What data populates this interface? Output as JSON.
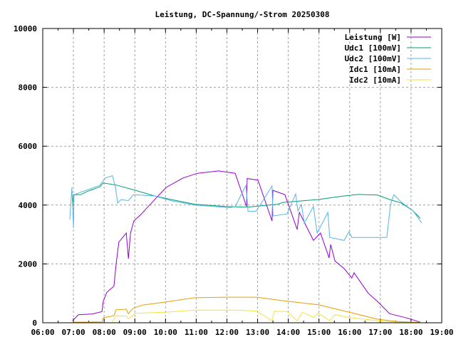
{
  "chart_data": {
    "type": "line",
    "title": "Leistung, DC-Spannung/-Strom 20250308",
    "xlabel": "",
    "ylabel": "",
    "xlim": [
      6,
      19
    ],
    "ylim": [
      0,
      10000
    ],
    "grid": true,
    "legend_position": "top-right",
    "x_tick_labels": [
      "06:00",
      "07:00",
      "08:00",
      "09:00",
      "10:00",
      "11:00",
      "12:00",
      "13:00",
      "14:00",
      "15:00",
      "16:00",
      "17:00",
      "18:00",
      "19:00"
    ],
    "y_tick_labels": [
      "0",
      "2000",
      "4000",
      "6000",
      "8000",
      "10000"
    ],
    "x_unit": "hour of day",
    "series": [
      {
        "name": "Leistung [W]",
        "color": "#9400d3",
        "points": [
          [
            6.97,
            70
          ],
          [
            7.16,
            270
          ],
          [
            7.62,
            300
          ],
          [
            7.93,
            380
          ],
          [
            7.97,
            730
          ],
          [
            8.09,
            1040
          ],
          [
            8.32,
            1240
          ],
          [
            8.39,
            2000
          ],
          [
            8.48,
            2740
          ],
          [
            8.72,
            3050
          ],
          [
            8.79,
            2180
          ],
          [
            8.86,
            3050
          ],
          [
            8.97,
            3460
          ],
          [
            9.02,
            3510
          ],
          [
            9.18,
            3660
          ],
          [
            9.48,
            4000
          ],
          [
            10.02,
            4600
          ],
          [
            10.57,
            4920
          ],
          [
            11.04,
            5080
          ],
          [
            11.73,
            5160
          ],
          [
            12.27,
            5080
          ],
          [
            12.64,
            3950
          ],
          [
            12.66,
            4900
          ],
          [
            13.01,
            4850
          ],
          [
            13.47,
            3460
          ],
          [
            13.5,
            4500
          ],
          [
            13.89,
            4350
          ],
          [
            14.29,
            3170
          ],
          [
            14.36,
            3750
          ],
          [
            14.82,
            2800
          ],
          [
            15.05,
            3050
          ],
          [
            15.33,
            2200
          ],
          [
            15.38,
            2660
          ],
          [
            15.52,
            2100
          ],
          [
            15.82,
            1840
          ],
          [
            16.07,
            1520
          ],
          [
            16.14,
            1700
          ],
          [
            16.61,
            1000
          ],
          [
            16.91,
            720
          ],
          [
            17.3,
            310
          ],
          [
            17.91,
            150
          ],
          [
            18.3,
            20
          ]
        ]
      },
      {
        "name": "Udc1 [100mV]",
        "color": "#009e73",
        "points": [
          [
            6.97,
            3950
          ],
          [
            7.0,
            4350
          ],
          [
            7.23,
            4350
          ],
          [
            7.46,
            4470
          ],
          [
            7.86,
            4620
          ],
          [
            7.97,
            4750
          ],
          [
            8.39,
            4680
          ],
          [
            9.02,
            4500
          ],
          [
            9.64,
            4310
          ],
          [
            10.18,
            4190
          ],
          [
            10.94,
            4030
          ],
          [
            11.97,
            3950
          ],
          [
            12.66,
            3930
          ],
          [
            13.66,
            4030
          ],
          [
            13.82,
            4090
          ],
          [
            14.98,
            4190
          ],
          [
            15.75,
            4300
          ],
          [
            16.28,
            4360
          ],
          [
            16.91,
            4340
          ],
          [
            17.3,
            4190
          ],
          [
            17.68,
            4070
          ],
          [
            18.07,
            3800
          ],
          [
            18.3,
            3550
          ]
        ]
      },
      {
        "name": "Udc2 [100mV]",
        "color": "#56b4e9",
        "points": [
          [
            6.88,
            3510
          ],
          [
            6.95,
            4600
          ],
          [
            7.0,
            3220
          ],
          [
            7.02,
            4350
          ],
          [
            7.23,
            4430
          ],
          [
            7.86,
            4670
          ],
          [
            8.04,
            4920
          ],
          [
            8.27,
            5000
          ],
          [
            8.37,
            4600
          ],
          [
            8.44,
            4070
          ],
          [
            8.55,
            4190
          ],
          [
            8.79,
            4150
          ],
          [
            8.95,
            4350
          ],
          [
            9.64,
            4310
          ],
          [
            10.18,
            4150
          ],
          [
            10.94,
            4000
          ],
          [
            12.1,
            3910
          ],
          [
            12.27,
            3950
          ],
          [
            12.62,
            4670
          ],
          [
            12.69,
            3780
          ],
          [
            12.96,
            3800
          ],
          [
            13.47,
            4650
          ],
          [
            13.5,
            3630
          ],
          [
            13.96,
            3700
          ],
          [
            14.24,
            4380
          ],
          [
            14.31,
            3800
          ],
          [
            14.43,
            4020
          ],
          [
            14.52,
            3390
          ],
          [
            14.82,
            3950
          ],
          [
            14.94,
            3050
          ],
          [
            15.29,
            3750
          ],
          [
            15.35,
            2900
          ],
          [
            15.82,
            2800
          ],
          [
            15.98,
            3100
          ],
          [
            16.07,
            2900
          ],
          [
            17.21,
            2900
          ],
          [
            17.33,
            4020
          ],
          [
            17.44,
            4350
          ],
          [
            17.68,
            4100
          ],
          [
            18.07,
            3800
          ],
          [
            18.35,
            3390
          ]
        ]
      },
      {
        "name": "Idc1 [10mA]",
        "color": "#e69f00",
        "points": [
          [
            6.97,
            20
          ],
          [
            7.93,
            30
          ],
          [
            7.97,
            170
          ],
          [
            8.32,
            240
          ],
          [
            8.39,
            440
          ],
          [
            8.72,
            460
          ],
          [
            8.79,
            310
          ],
          [
            8.95,
            500
          ],
          [
            9.25,
            600
          ],
          [
            10.02,
            710
          ],
          [
            10.94,
            850
          ],
          [
            11.97,
            870
          ],
          [
            12.96,
            870
          ],
          [
            13.82,
            750
          ],
          [
            14.98,
            610
          ],
          [
            15.98,
            360
          ],
          [
            16.91,
            120
          ],
          [
            17.54,
            40
          ],
          [
            18.3,
            10
          ]
        ]
      },
      {
        "name": "Idc2 [10mA]",
        "color": "#f0e442",
        "points": [
          [
            6.97,
            0
          ],
          [
            8.25,
            0
          ],
          [
            8.39,
            240
          ],
          [
            8.72,
            230
          ],
          [
            8.79,
            130
          ],
          [
            9.02,
            320
          ],
          [
            10.02,
            360
          ],
          [
            10.94,
            430
          ],
          [
            12.27,
            430
          ],
          [
            12.96,
            400
          ],
          [
            13.47,
            70
          ],
          [
            13.54,
            390
          ],
          [
            13.96,
            380
          ],
          [
            14.29,
            70
          ],
          [
            14.47,
            360
          ],
          [
            14.82,
            180
          ],
          [
            14.98,
            330
          ],
          [
            15.35,
            70
          ],
          [
            15.52,
            280
          ],
          [
            15.98,
            180
          ],
          [
            16.91,
            70
          ],
          [
            17.68,
            10
          ],
          [
            18.3,
            0
          ]
        ]
      }
    ]
  }
}
